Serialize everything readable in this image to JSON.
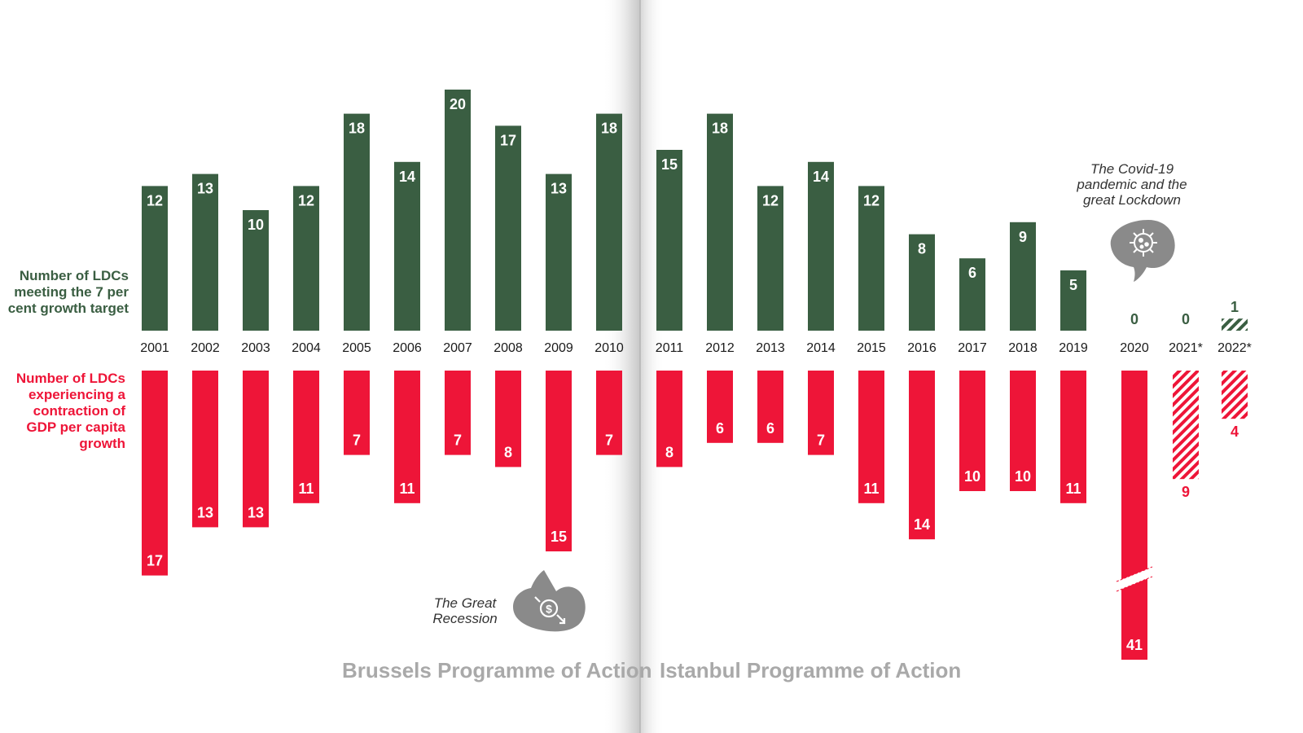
{
  "colors": {
    "green": "#3a5e42",
    "red": "#ee1538",
    "grey_icon": "#8a8a8a",
    "period_text": "#a9a9a9"
  },
  "labels": {
    "meeting_target": "Number of LDCs meeting the 7 per cent growth target",
    "contraction": "Number of LDCs experiencing a contraction of GDP per capita growth"
  },
  "periods": {
    "brussels": "Brussels Programme of Action",
    "istanbul": "Istanbul Programme of Action"
  },
  "annotations": {
    "recession": "The Great Recession",
    "covid": "The Covid-19 pandemic and the great Lockdown"
  },
  "icons": {
    "recession": "falling-dollar-icon",
    "covid": "virus-icon"
  },
  "chart_data": {
    "type": "bar",
    "categories": [
      "2001",
      "2002",
      "2003",
      "2004",
      "2005",
      "2006",
      "2007",
      "2008",
      "2009",
      "2010",
      "2011",
      "2012",
      "2013",
      "2014",
      "2015",
      "2016",
      "2017",
      "2018",
      "2019",
      "2020",
      "2021*",
      "2022*"
    ],
    "series": [
      {
        "name": "Number of LDCs meeting the 7 per cent growth target",
        "values": [
          12,
          13,
          10,
          12,
          18,
          14,
          20,
          17,
          13,
          18,
          15,
          18,
          12,
          14,
          12,
          8,
          6,
          9,
          5,
          0,
          0,
          1
        ],
        "estimated": [
          false,
          false,
          false,
          false,
          false,
          false,
          false,
          false,
          false,
          false,
          false,
          false,
          false,
          false,
          false,
          false,
          false,
          false,
          false,
          false,
          true,
          true
        ]
      },
      {
        "name": "Number of LDCs experiencing a contraction of GDP per capita growth",
        "values": [
          17,
          13,
          13,
          11,
          7,
          11,
          7,
          8,
          15,
          7,
          8,
          6,
          6,
          7,
          11,
          14,
          10,
          10,
          11,
          41,
          9,
          4
        ],
        "estimated": [
          false,
          false,
          false,
          false,
          false,
          false,
          false,
          false,
          false,
          false,
          false,
          false,
          false,
          false,
          false,
          false,
          false,
          false,
          false,
          false,
          true,
          true
        ],
        "axis_break": "2020"
      }
    ]
  }
}
